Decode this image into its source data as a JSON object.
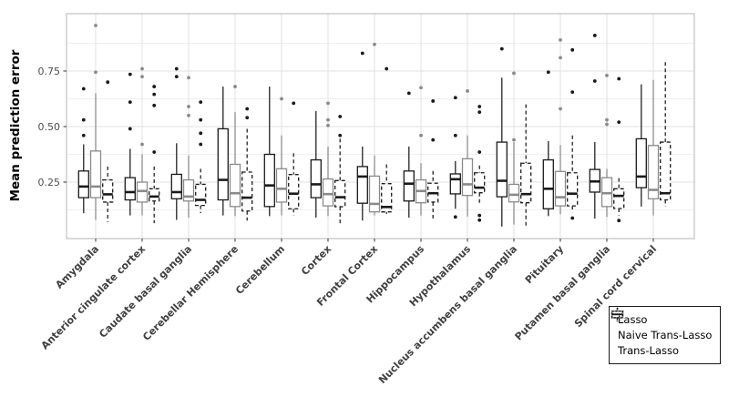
{
  "figure": {
    "background": "#ffffff"
  },
  "chart_data": {
    "type": "boxplot",
    "title": "",
    "xlabel": "",
    "ylabel": "Mean prediction error",
    "ylim": [
      0,
      1.0
    ],
    "yticks": [
      0.25,
      0.5,
      0.75
    ],
    "ytick_labels": [
      "0.25",
      "0.50",
      "0.75"
    ],
    "grid": "major+minor, light gray on white",
    "legend_position": "bottom-right",
    "colors": {
      "lasso": "#1a1a1a",
      "naive_trans_lasso": "#8a8a8a",
      "trans_lasso": "#1a1a1a",
      "axis_text": "#4d4d4d",
      "x_axis_text": "#404040",
      "grid_major": "#e2e2e2",
      "grid_minor": "#f0f0f0",
      "panel_border": "#c2c2c2",
      "box_fill": "#ffffff"
    },
    "legend": [
      {
        "label": "Lasso",
        "style": "solid-black"
      },
      {
        "label": "Naive Trans-Lasso",
        "style": "solid-gray"
      },
      {
        "label": "Trans-Lasso",
        "style": "dashed-black"
      }
    ],
    "categories": [
      "Amygdala",
      "Anterior cingulate cortex",
      "Caudate basal ganglia",
      "Cerebellar Hemisphere",
      "Cerebellum",
      "Cortex",
      "Frontal Cortex",
      "Hippocampus",
      "Hypothalamus",
      "Nucleus accumbens basal ganglia",
      "Pituitary",
      "Putamen basal ganglia",
      "Spinal cord cervical"
    ],
    "series": [
      {
        "name": "Lasso",
        "line": "solid",
        "color_key": "lasso",
        "boxes": [
          {
            "whislo": 0.11,
            "q1": 0.18,
            "med": 0.23,
            "q3": 0.3,
            "whishi": 0.42,
            "outliers": [
              0.46,
              0.53,
              0.67
            ]
          },
          {
            "whislo": 0.1,
            "q1": 0.17,
            "med": 0.205,
            "q3": 0.27,
            "whishi": 0.4,
            "outliers": [
              0.735,
              0.61,
              0.49
            ]
          },
          {
            "whislo": 0.08,
            "q1": 0.175,
            "med": 0.205,
            "q3": 0.285,
            "whishi": 0.425,
            "outliers": [
              0.76,
              0.725
            ]
          },
          {
            "whislo": 0.1,
            "q1": 0.17,
            "med": 0.26,
            "q3": 0.49,
            "whishi": 0.68,
            "outliers": []
          },
          {
            "whislo": 0.097,
            "q1": 0.14,
            "med": 0.235,
            "q3": 0.375,
            "whishi": 0.68,
            "outliers": []
          },
          {
            "whislo": 0.09,
            "q1": 0.18,
            "med": 0.24,
            "q3": 0.35,
            "whishi": 0.57,
            "outliers": []
          },
          {
            "whislo": 0.077,
            "q1": 0.155,
            "med": 0.275,
            "q3": 0.32,
            "whishi": 0.41,
            "outliers": [
              0.83
            ]
          },
          {
            "whislo": 0.09,
            "q1": 0.165,
            "med": 0.243,
            "q3": 0.3,
            "whishi": 0.41,
            "outliers": [
              0.65
            ]
          },
          {
            "whislo": 0.13,
            "q1": 0.197,
            "med": 0.263,
            "q3": 0.287,
            "whishi": 0.345,
            "outliers": [
              0.63,
              0.46,
              0.093
            ]
          },
          {
            "whislo": 0.05,
            "q1": 0.184,
            "med": 0.256,
            "q3": 0.43,
            "whishi": 0.72,
            "outliers": [
              0.85
            ]
          },
          {
            "whislo": 0.097,
            "q1": 0.13,
            "med": 0.22,
            "q3": 0.35,
            "whishi": 0.435,
            "outliers": [
              0.745
            ]
          },
          {
            "whislo": 0.086,
            "q1": 0.205,
            "med": 0.253,
            "q3": 0.307,
            "whishi": 0.43,
            "outliers": [
              0.91,
              0.705
            ]
          },
          {
            "whislo": 0.14,
            "q1": 0.225,
            "med": 0.275,
            "q3": 0.445,
            "whishi": 0.69,
            "outliers": []
          }
        ]
      },
      {
        "name": "Naive Trans-Lasso",
        "line": "solid",
        "color_key": "naive_trans_lasso",
        "boxes": [
          {
            "whislo": 0.08,
            "q1": 0.18,
            "med": 0.23,
            "q3": 0.39,
            "whishi": 0.65,
            "outliers": [
              0.955,
              0.745
            ]
          },
          {
            "whislo": 0.1,
            "q1": 0.16,
            "med": 0.21,
            "q3": 0.25,
            "whishi": 0.375,
            "outliers": [
              0.76,
              0.725,
              0.42
            ]
          },
          {
            "whislo": 0.09,
            "q1": 0.165,
            "med": 0.185,
            "q3": 0.26,
            "whishi": 0.37,
            "outliers": [
              0.72,
              0.59,
              0.55
            ]
          },
          {
            "whislo": 0.097,
            "q1": 0.14,
            "med": 0.2,
            "q3": 0.33,
            "whishi": 0.565,
            "outliers": [
              0.68
            ]
          },
          {
            "whislo": 0.1,
            "q1": 0.16,
            "med": 0.22,
            "q3": 0.31,
            "whishi": 0.46,
            "outliers": [
              0.625
            ]
          },
          {
            "whislo": 0.097,
            "q1": 0.143,
            "med": 0.196,
            "q3": 0.264,
            "whishi": 0.41,
            "outliers": [
              0.605,
              0.53,
              0.505
            ]
          },
          {
            "whislo": 0.1,
            "q1": 0.116,
            "med": 0.152,
            "q3": 0.277,
            "whishi": 0.37,
            "outliers": [
              0.87
            ]
          },
          {
            "whislo": 0.1,
            "q1": 0.157,
            "med": 0.21,
            "q3": 0.26,
            "whishi": 0.335,
            "outliers": [
              0.675,
              0.46
            ]
          },
          {
            "whislo": 0.095,
            "q1": 0.19,
            "med": 0.24,
            "q3": 0.355,
            "whishi": 0.46,
            "outliers": [
              0.66
            ]
          },
          {
            "whislo": 0.059,
            "q1": 0.161,
            "med": 0.193,
            "q3": 0.24,
            "whishi": 0.43,
            "outliers": [
              0.74,
              0.44
            ]
          },
          {
            "whislo": 0.105,
            "q1": 0.143,
            "med": 0.182,
            "q3": 0.298,
            "whishi": 0.417,
            "outliers": [
              0.89,
              0.81,
              0.58
            ]
          },
          {
            "whislo": 0.093,
            "q1": 0.14,
            "med": 0.2,
            "q3": 0.27,
            "whishi": 0.31,
            "outliers": [
              0.73,
              0.53,
              0.51
            ]
          },
          {
            "whislo": 0.1,
            "q1": 0.175,
            "med": 0.215,
            "q3": 0.415,
            "whishi": 0.71,
            "outliers": []
          }
        ]
      },
      {
        "name": "Trans-Lasso",
        "line": "dashed",
        "color_key": "trans_lasso",
        "boxes": [
          {
            "whislo": 0.07,
            "q1": 0.16,
            "med": 0.195,
            "q3": 0.26,
            "whishi": 0.32,
            "outliers": [
              0.7
            ]
          },
          {
            "whislo": 0.065,
            "q1": 0.165,
            "med": 0.185,
            "q3": 0.22,
            "whishi": 0.32,
            "outliers": [
              0.68,
              0.645,
              0.595,
              0.385
            ]
          },
          {
            "whislo": 0.11,
            "q1": 0.145,
            "med": 0.17,
            "q3": 0.24,
            "whishi": 0.31,
            "outliers": [
              0.61,
              0.53,
              0.47,
              0.42
            ]
          },
          {
            "whislo": 0.077,
            "q1": 0.12,
            "med": 0.18,
            "q3": 0.295,
            "whishi": 0.49,
            "outliers": [
              0.58,
              0.54
            ]
          },
          {
            "whislo": 0.1,
            "q1": 0.13,
            "med": 0.198,
            "q3": 0.284,
            "whishi": 0.38,
            "outliers": [
              0.605
            ]
          },
          {
            "whislo": 0.061,
            "q1": 0.139,
            "med": 0.182,
            "q3": 0.257,
            "whishi": 0.445,
            "outliers": [
              0.545,
              0.46
            ]
          },
          {
            "whislo": 0.107,
            "q1": 0.116,
            "med": 0.138,
            "q3": 0.243,
            "whishi": 0.33,
            "outliers": [
              0.76
            ]
          },
          {
            "whislo": 0.086,
            "q1": 0.16,
            "med": 0.2,
            "q3": 0.245,
            "whishi": 0.3,
            "outliers": [
              0.615,
              0.44
            ]
          },
          {
            "whislo": 0.157,
            "q1": 0.202,
            "med": 0.225,
            "q3": 0.292,
            "whishi": 0.325,
            "outliers": [
              0.59,
              0.565,
              0.385,
              0.1,
              0.079
            ]
          },
          {
            "whislo": 0.045,
            "q1": 0.157,
            "med": 0.196,
            "q3": 0.335,
            "whishi": 0.6,
            "outliers": []
          },
          {
            "whislo": 0.113,
            "q1": 0.143,
            "med": 0.198,
            "q3": 0.292,
            "whishi": 0.46,
            "outliers": [
              0.845,
              0.655,
              0.088
            ]
          },
          {
            "whislo": 0.1,
            "q1": 0.131,
            "med": 0.188,
            "q3": 0.22,
            "whishi": 0.268,
            "outliers": [
              0.715,
              0.52,
              0.077
            ]
          },
          {
            "whislo": 0.14,
            "q1": 0.17,
            "med": 0.2,
            "q3": 0.43,
            "whishi": 0.79,
            "outliers": []
          }
        ]
      }
    ]
  }
}
